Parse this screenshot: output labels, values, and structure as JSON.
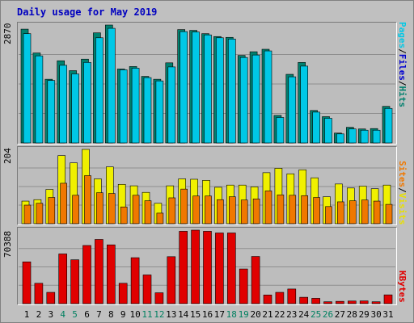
{
  "title": "Daily usage for May 2019",
  "colors": {
    "background": "#c0c0c0",
    "panel": "#bdbdbd",
    "title": "#0000c0",
    "grid": "#8f8f8f",
    "pages": "#00c8e6",
    "files": "#0000d0",
    "hits": "#00806e",
    "visits": "#f0f000",
    "sites": "#f07800",
    "kbytes": "#e00000",
    "weekday_label": "#000000",
    "weekend_label": "#008060"
  },
  "legend": {
    "top": [
      "Pages",
      "/",
      "Files",
      "/",
      "Hits"
    ],
    "middle": [
      "Sites",
      "/",
      "Visits"
    ],
    "bottom": "KBytes"
  },
  "chart_data": [
    {
      "type": "bar",
      "name": "hits-files-pages",
      "ymax_label": "2870",
      "ylim": [
        0,
        2870
      ],
      "categories": [
        "1",
        "2",
        "3",
        "4",
        "5",
        "6",
        "7",
        "8",
        "9",
        "10",
        "11",
        "12",
        "13",
        "14",
        "15",
        "16",
        "17",
        "18",
        "19",
        "20",
        "21",
        "22",
        "23",
        "24",
        "25",
        "26",
        "27",
        "28",
        "29",
        "30",
        "31"
      ],
      "series": [
        {
          "name": "Hits",
          "values": [
            2770,
            2190,
            1550,
            2000,
            1760,
            2040,
            2680,
            2870,
            1800,
            1860,
            1620,
            1550,
            1950,
            2760,
            2740,
            2660,
            2590,
            2570,
            2130,
            2220,
            2280,
            670,
            1670,
            1960,
            790,
            640,
            240,
            380,
            340,
            350,
            890
          ],
          "weekend_days": []
        },
        {
          "name": "Files",
          "values": [
            2660,
            2120,
            1520,
            1890,
            1680,
            1960,
            2560,
            2790,
            1780,
            1820,
            1590,
            1510,
            1850,
            2710,
            2700,
            2630,
            2560,
            2530,
            2080,
            2140,
            2240,
            620,
            1610,
            1870,
            750,
            600,
            220,
            340,
            310,
            310,
            840
          ]
        },
        {
          "name": "Pages",
          "values": [
            2660,
            2120,
            1520,
            1890,
            1680,
            1960,
            2560,
            2790,
            1780,
            1820,
            1590,
            1510,
            1850,
            2710,
            2700,
            2630,
            2560,
            2530,
            2080,
            2140,
            2240,
            620,
            1610,
            1870,
            750,
            600,
            220,
            340,
            310,
            310,
            840
          ]
        }
      ]
    },
    {
      "type": "bar",
      "name": "visits-sites",
      "ymax_label": "204",
      "ylim": [
        0,
        204
      ],
      "series": [
        {
          "name": "Visits",
          "values": [
            62,
            66,
            94,
            187,
            167,
            204,
            123,
            156,
            108,
            104,
            86,
            56,
            104,
            123,
            122,
            119,
            100,
            106,
            106,
            101,
            140,
            152,
            137,
            148,
            126,
            74,
            109,
            98,
            103,
            96,
            106
          ]
        },
        {
          "name": "Sites",
          "values": [
            51,
            56,
            72,
            111,
            78,
            132,
            85,
            83,
            46,
            78,
            63,
            29,
            71,
            95,
            76,
            76,
            66,
            74,
            65,
            68,
            90,
            79,
            78,
            77,
            72,
            47,
            60,
            63,
            65,
            62,
            53
          ]
        }
      ]
    },
    {
      "type": "bar",
      "name": "kbytes",
      "ymax_label": "70388",
      "ylim": [
        0,
        70388
      ],
      "series": [
        {
          "name": "KBytes",
          "values": [
            40000,
            19500,
            10800,
            47600,
            42000,
            55700,
            61500,
            56300,
            19500,
            44000,
            27500,
            10400,
            45000,
            69300,
            70388,
            69300,
            67700,
            67700,
            33200,
            45200,
            8300,
            10800,
            14000,
            6100,
            5100,
            1800,
            2200,
            2500,
            2600,
            1800,
            8400
          ]
        }
      ]
    }
  ],
  "x_labels": {
    "weekend_days": [
      4,
      5,
      11,
      12,
      18,
      19,
      25,
      26
    ]
  }
}
